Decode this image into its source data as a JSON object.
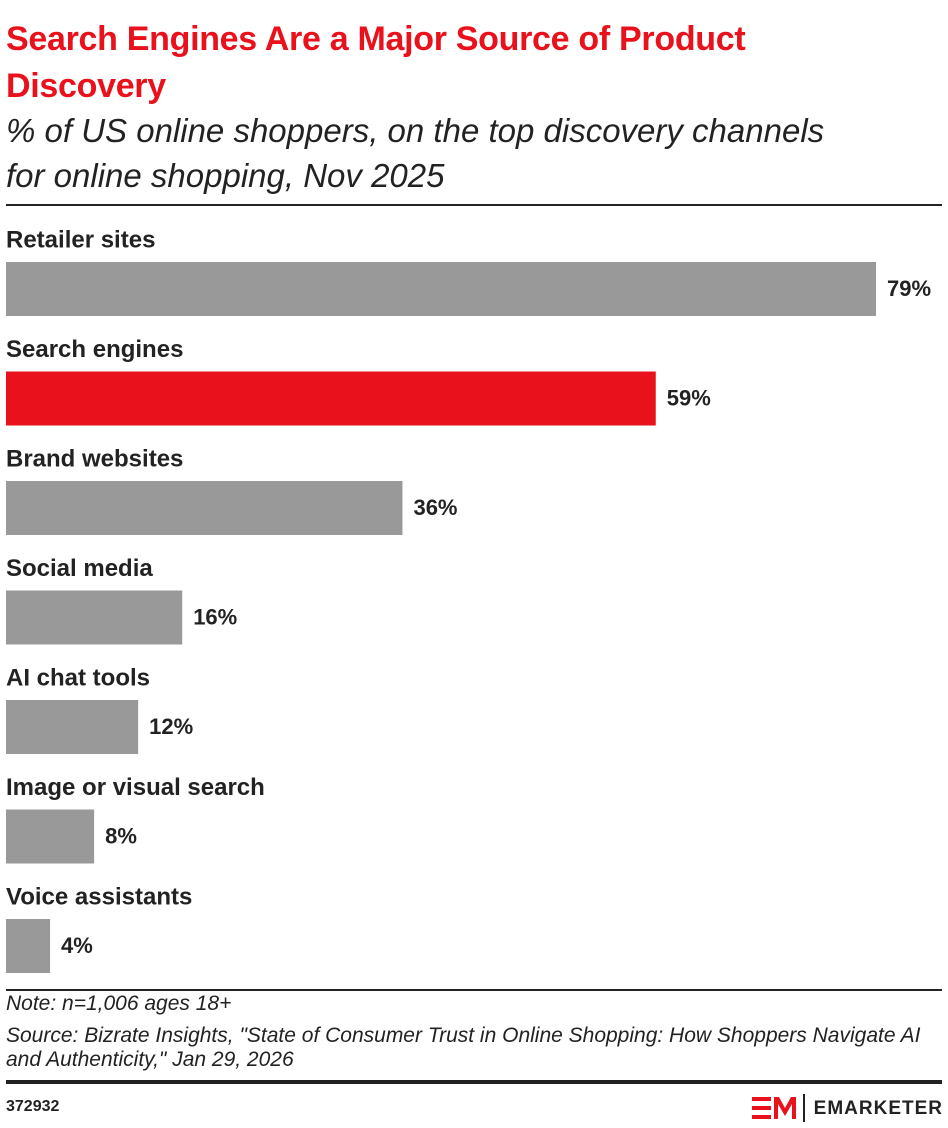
{
  "chart_data": {
    "type": "bar",
    "orientation": "horizontal",
    "title": "Search Engines Are a Major Source of Product Discovery",
    "subtitle": "% of US online shoppers, on the top discovery channels for online shopping, Nov 2025",
    "categories": [
      "Retailer sites",
      "Search engines",
      "Brand websites",
      "Social media",
      "AI chat tools",
      "Image or visual search",
      "Voice assistants"
    ],
    "values": [
      79,
      59,
      36,
      16,
      12,
      8,
      4
    ],
    "value_labels": [
      "79%",
      "59%",
      "36%",
      "16%",
      "12%",
      "8%",
      "4%"
    ],
    "colors": [
      "#999999",
      "#e8111c",
      "#999999",
      "#999999",
      "#999999",
      "#999999",
      "#999999"
    ],
    "note": "Note: n=1,006 ages 18+",
    "source": "Source: Bizrate Insights, \"State of Consumer Trust in Online Shopping: How Shoppers Navigate AI and Authenticity,\" Jan 29, 2026",
    "chart_id": "372932",
    "brand": "EMARKETER"
  }
}
